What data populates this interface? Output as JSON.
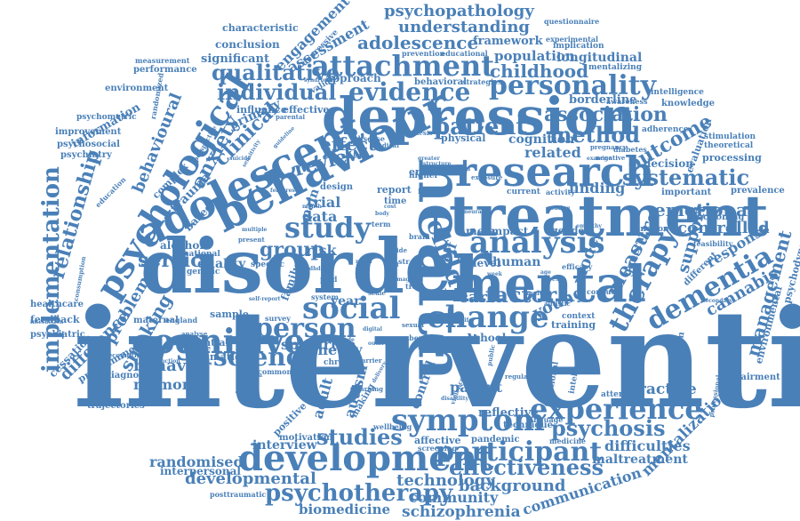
{
  "cloud": {
    "color": "#4a80b8",
    "words": {
      "intervention": "intervention",
      "disorder": "disorder",
      "depression": "depression",
      "treatment": "treatment",
      "behaviour": "behaviour",
      "health": "health",
      "adolescent": "adolescent",
      "mental": "mental",
      "research": "research",
      "development": "development",
      "cognitive": "cognitive",
      "psychological": "psychological",
      "analysis": "analysis",
      "change": "change",
      "symptom": "symptom",
      "study": "study",
      "social": "social",
      "participant": "participant",
      "experience": "experience",
      "attachment": "attachment",
      "evidence": "evidence",
      "personality": "personality",
      "psychotherapy": "psychotherapy",
      "implementation": "implementation",
      "dementia": "dementia",
      "person": "person",
      "science": "science",
      "therapy": "therapy",
      "effectiveness": "effectiveness",
      "systematic": "systematic",
      "psychosis": "psychosis",
      "patient": "patient",
      "method": "method",
      "association": "association",
      "individual": "individual",
      "qualitative": "qualitative",
      "adolescence": "adolescence",
      "childhood": "childhood",
      "psychopathology": "psychopathology",
      "understanding": "understanding",
      "child": "child",
      "outcome": "outcome",
      "emotional": "emotional",
      "management": "management",
      "measure": "measure",
      "relationship": "relationship",
      "service": "service",
      "group": "group",
      "factor": "factor",
      "studies": "studies",
      "schizophrenia": "schizophrenia",
      "technology": "technology",
      "background": "background",
      "developmental": "developmental",
      "community": "community",
      "biomedicine": "biomedicine",
      "communication": "communication",
      "randomised": "randomised",
      "interpersonal": "interpersonal",
      "mentalization": "mentalization",
      "maltreatment": "maltreatment",
      "difficulties": "difficulties",
      "practice": "practice",
      "controlled": "controlled",
      "support": "support",
      "response": "response",
      "cannabis": "cannabis",
      "review": "review",
      "clinical": "clinical",
      "anxiety": "anxiety",
      "effect": "effect",
      "smoking": "smoking",
      "problem": "problem",
      "difference": "difference",
      "behavior": "behavior",
      "memory": "memory",
      "quality": "quality",
      "theory": "theory",
      "spectrum": "spectrum",
      "autism": "autism",
      "adult": "adult",
      "care": "care",
      "young": "young",
      "model": "model",
      "finding": "finding",
      "related": "related",
      "cognition": "cognition",
      "trial": "trial",
      "risk": "risk",
      "data": "data",
      "parent": "parent",
      "result": "result",
      "school": "school",
      "human": "human",
      "level": "level",
      "meta": "meta",
      "self": "self",
      "pain": "pain",
      "year": "year",
      "interview": "interview",
      "reflective": "reflective",
      "framework": "framework",
      "population": "population",
      "longitudinal": "longitudinal",
      "approach": "approach",
      "engagement": "engagement",
      "assessment": "assessment",
      "conclusion": "conclusion",
      "characteristic": "characteristic",
      "significant": "significant",
      "performance": "performance",
      "information": "information",
      "environment": "environment",
      "improvement": "improvement",
      "psychosocial": "psychosocial",
      "psychiatry": "psychiatry",
      "healthcare": "healthcare",
      "feedback": "feedback",
      "psychiatric": "psychiatric",
      "cessation": "cessation",
      "programme": "programme",
      "trajectories": "trajectories",
      "diagnosis": "diagnosis",
      "traumatic": "traumatic",
      "potential": "potential",
      "sample": "sample",
      "maternal": "maternal",
      "alcohol": "alcohol",
      "national": "national",
      "genetic": "genetic",
      "primary": "primary",
      "influence": "influence",
      "effective": "effective",
      "validity": "validity",
      "behavioral": "behavioral",
      "strategies": "strategies",
      "behavioural": "behavioural",
      "trauma": "trauma",
      "complex": "complex",
      "based": "based",
      "family": "family",
      "specific": "specific",
      "design": "design",
      "report": "report",
      "time": "time",
      "higher": "higher",
      "emotion": "emotion",
      "future": "future",
      "physical": "physical",
      "disease": "disease",
      "impact": "impact",
      "current": "current",
      "activity": "activity",
      "gender": "gender",
      "function": "function",
      "general": "general",
      "efficacy": "efficacy",
      "conduct": "conduct",
      "context": "context",
      "training": "training",
      "attention": "attention",
      "mechanism": "mechanism",
      "impairment": "impairment",
      "environmental": "environmental",
      "psychodynamic": "psychodynamic",
      "functioning": "functioning",
      "prevalence": "prevalence",
      "feasibility": "feasibility",
      "important": "important",
      "decision": "decision",
      "processing": "processing",
      "evaluation": "evaluation",
      "stimulation": "stimulation",
      "theoretical": "theoretical",
      "adherence": "adherence",
      "knowledge": "knowledge",
      "intelligence": "intelligence",
      "borderline": "borderline",
      "awareness": "awareness",
      "mentalizing": "mentalizing",
      "implication": "implication",
      "experimental": "experimental",
      "questionnaire": "questionnaire",
      "prevention": "prevention",
      "educational": "educational",
      "measurement": "measurement",
      "depressive": "depressive",
      "randomized": "randomized",
      "psychometric": "psychometric",
      "positive": "positive",
      "motivation": "motivation",
      "affective": "affective",
      "pandemic": "pandemic",
      "technique": "technique",
      "language": "language",
      "screening": "screening",
      "wellbeing": "wellbeing",
      "medicine": "medicine",
      "posttraumatic": "posttraumatic",
      "literature": "literature",
      "control": "control",
      "making": "making",
      "chronic": "chronic",
      "barrier": "barrier",
      "number": "number",
      "network": "network",
      "common": "common",
      "recognition": "recognition",
      "england": "england",
      "survey": "survey",
      "ptsd": "ptsd",
      "system": "system",
      "analyse": "analyse",
      "increase": "increase",
      "setting": "setting",
      "present": "present",
      "healthy": "healthy",
      "autistic": "autistic",
      "regulation": "regulation",
      "functional": "functional",
      "intellectual": "intellectual",
      "negative": "negative",
      "pregnancy": "pregnancy",
      "diabetes": "diabetes",
      "medical": "medical",
      "parental": "parental",
      "education": "education",
      "exposure": "exposure",
      "domain": "domain",
      "synthesis": "synthesis",
      "brain": "brain",
      "term": "term",
      "trait": "trait",
      "secondary": "secondary",
      "professional": "professional",
      "different": "different",
      "str": "str",
      "wide": "wide",
      "consumption": "consumption",
      "interaction": "interaction",
      "reduction": "reduction",
      "scale": "scale",
      "greater": "greater",
      "empathy": "empathy",
      "imaging": "imaging",
      "sexual": "sexual",
      "attitude": "attitude",
      "mood": "mood",
      "old": "old",
      "baseline": "baseline",
      "structure": "structure",
      "multiple": "multiple",
      "learning": "learning",
      "delivery": "delivery",
      "disability": "disability",
      "outbreak": "outbreak",
      "violence": "violence",
      "stress": "stress",
      "examine": "examine",
      "digital": "digital",
      "public": "public",
      "syndrome": "syndrome",
      "anorexia": "anorexia",
      "features": "features",
      "guideline": "guideline",
      "suicide": "suicide",
      "sensitivity": "sensitivity",
      "perspective": "perspective",
      "mouth": "mouth",
      "body": "body",
      "cost": "cost",
      "self-report": "self-report",
      "health2": "health",
      "week": "week",
      "age": "age",
      "life": "life",
      "cohort": "cohort",
      "adhd": "adhd",
      "neural": "neural",
      "eating": "eating"
    }
  }
}
